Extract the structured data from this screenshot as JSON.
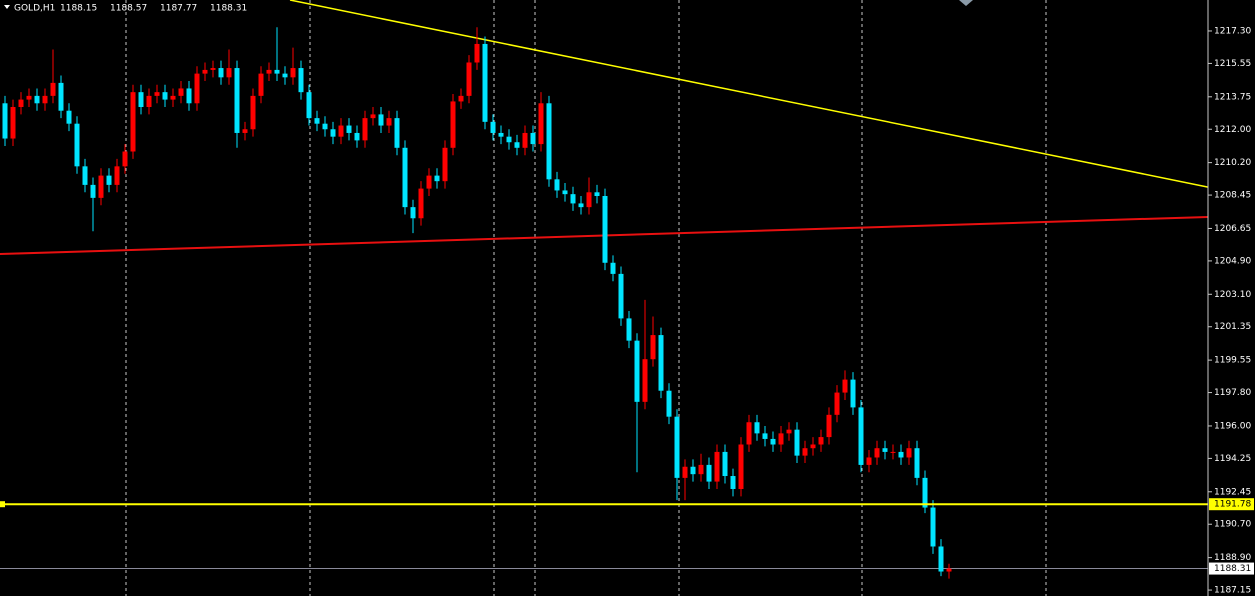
{
  "chart_data": {
    "type": "candlestick",
    "symbol": "GOLD,H1",
    "up_color": "#ff0000",
    "down_color": "#00e5ff",
    "ylim": [
      1186.83,
      1218.97
    ],
    "yticks": [
      {
        "value": 1217.3,
        "label": "1217.30"
      },
      1215.55,
      1213.75,
      {
        "value": 1212,
        "label": "1212.00"
      },
      {
        "value": 1210.2,
        "label": "1210.20"
      },
      1208.45,
      1206.65,
      {
        "value": 1204.9,
        "label": "1204.90"
      },
      {
        "value": 1203.1,
        "label": "1203.10"
      },
      1201.35,
      1199.55,
      {
        "value": 1197.8,
        "label": "1197.80"
      },
      {
        "value": 1196,
        "label": "1196.00"
      },
      1194.25,
      1192.45,
      {
        "value": 1190.7,
        "label": "1190.70"
      },
      {
        "value": 1188.9,
        "label": "1188.90"
      },
      1187.15
    ],
    "open": [
      1213.4,
      1211.5,
      1213.2,
      1213.6,
      1213.8,
      1213.4,
      1213.8,
      1214.5,
      1213.0,
      1212.3,
      1210.0,
      1209.0,
      1208.3,
      1209.5,
      1209.0,
      1210.0,
      1210.8,
      1214.0,
      1213.2,
      1213.8,
      1214.0,
      1213.6,
      1213.8,
      1214.2,
      1213.4,
      1215.0,
      1215.2,
      1215.3,
      1214.8,
      1215.3,
      1211.8,
      1212.0,
      1213.8,
      1215.0,
      1215.2,
      1215.0,
      1214.8,
      1215.3,
      1214.0,
      1212.6,
      1212.3,
      1212.0,
      1211.6,
      1212.2,
      1211.8,
      1211.4,
      1212.6,
      1212.8,
      1212.2,
      1212.6,
      1211.0,
      1207.8,
      1207.2,
      1208.8,
      1209.5,
      1209.2,
      1211.0,
      1213.5,
      1213.8,
      1215.6,
      1216.6,
      1212.4,
      1211.8,
      1211.6,
      1211.3,
      1211.0,
      1211.8,
      1211.2,
      1213.4,
      1209.3,
      1208.7,
      1208.5,
      1208.0,
      1207.8,
      1208.6,
      1208.4,
      1204.8,
      1204.2,
      1201.8,
      1200.6,
      1197.3,
      1199.6,
      1200.9,
      1197.9,
      1196.5,
      1193.2,
      1193.8,
      1193.4,
      1193.9,
      1193.0,
      1194.6,
      1193.3,
      1192.6,
      1195.0,
      1196.2,
      1195.6,
      1195.3,
      1195.0,
      1195.6,
      1195.8,
      1194.4,
      1194.8,
      1195.0,
      1195.4,
      1196.6,
      1197.8,
      1198.5,
      1197.0,
      1193.9,
      1194.3,
      1194.8,
      1194.6,
      1194.6,
      1194.3,
      1194.8,
      1193.2,
      1191.6,
      1189.5,
      1188.15
    ],
    "high": [
      1213.8,
      1213.6,
      1214.0,
      1214.2,
      1214.2,
      1214.2,
      1216.3,
      1214.9,
      1213.4,
      1212.7,
      1210.4,
      1209.4,
      1209.9,
      1209.9,
      1210.4,
      1211.2,
      1214.4,
      1214.4,
      1214.2,
      1214.4,
      1214.4,
      1214.2,
      1214.6,
      1214.6,
      1215.4,
      1215.6,
      1215.7,
      1215.7,
      1216.3,
      1215.7,
      1212.4,
      1214.2,
      1215.4,
      1215.6,
      1217.5,
      1215.4,
      1216.4,
      1215.7,
      1214.4,
      1213.0,
      1212.7,
      1212.4,
      1212.6,
      1212.6,
      1212.2,
      1213.0,
      1213.2,
      1213.2,
      1213.0,
      1213.0,
      1211.4,
      1208.2,
      1209.2,
      1209.9,
      1209.9,
      1211.4,
      1213.9,
      1214.2,
      1216.0,
      1217.5,
      1217.0,
      1212.8,
      1212.2,
      1212.0,
      1211.7,
      1212.2,
      1212.2,
      1214.0,
      1213.8,
      1209.7,
      1209.1,
      1208.9,
      1208.4,
      1209.4,
      1209.0,
      1208.8,
      1205.2,
      1204.6,
      1202.2,
      1201.0,
      1202.8,
      1201.9,
      1201.3,
      1198.3,
      1196.9,
      1194.2,
      1194.2,
      1194.5,
      1194.3,
      1195.0,
      1195.0,
      1193.7,
      1195.4,
      1196.6,
      1196.6,
      1196.0,
      1195.7,
      1196.0,
      1196.2,
      1196.2,
      1195.2,
      1195.4,
      1195.8,
      1197.0,
      1198.2,
      1199.0,
      1198.9,
      1197.4,
      1194.7,
      1195.2,
      1195.2,
      1195.0,
      1195.0,
      1195.2,
      1195.2,
      1193.6,
      1192.0,
      1189.9,
      1188.57
    ],
    "low": [
      1211.1,
      1211.1,
      1212.8,
      1213.2,
      1213.0,
      1213.0,
      1213.4,
      1212.6,
      1211.9,
      1209.6,
      1208.6,
      1206.5,
      1207.9,
      1208.6,
      1208.6,
      1209.6,
      1210.4,
      1212.8,
      1212.8,
      1213.4,
      1213.2,
      1213.2,
      1213.4,
      1213.0,
      1213.0,
      1214.6,
      1214.8,
      1214.4,
      1214.4,
      1211.0,
      1211.4,
      1211.6,
      1213.4,
      1214.6,
      1214.6,
      1214.4,
      1214.4,
      1213.6,
      1212.2,
      1211.9,
      1211.6,
      1211.2,
      1211.2,
      1211.4,
      1211.0,
      1211.0,
      1212.2,
      1211.8,
      1211.8,
      1210.6,
      1207.4,
      1206.4,
      1206.8,
      1208.4,
      1208.8,
      1208.8,
      1210.6,
      1213.1,
      1213.4,
      1215.2,
      1212.0,
      1211.4,
      1211.2,
      1210.9,
      1210.6,
      1210.6,
      1210.8,
      1210.8,
      1208.9,
      1208.3,
      1208.1,
      1207.6,
      1207.4,
      1207.4,
      1208.0,
      1204.4,
      1203.8,
      1201.4,
      1200.2,
      1193.5,
      1196.9,
      1199.2,
      1197.5,
      1196.1,
      1192.0,
      1192.0,
      1193.0,
      1193.0,
      1192.6,
      1192.6,
      1192.9,
      1192.2,
      1192.2,
      1194.6,
      1195.2,
      1194.9,
      1194.6,
      1194.6,
      1195.2,
      1194.0,
      1194.0,
      1194.4,
      1194.6,
      1195.0,
      1196.2,
      1197.4,
      1196.6,
      1193.5,
      1193.5,
      1193.9,
      1194.2,
      1194.2,
      1193.9,
      1193.9,
      1192.8,
      1191.3,
      1189.1,
      1187.9,
      1187.77
    ],
    "close": [
      1211.5,
      1213.2,
      1213.6,
      1213.8,
      1213.4,
      1213.8,
      1214.5,
      1213.0,
      1212.3,
      1210.0,
      1209.0,
      1208.3,
      1209.5,
      1209.0,
      1210.0,
      1210.8,
      1214.0,
      1213.2,
      1213.8,
      1214.0,
      1213.6,
      1213.8,
      1214.2,
      1213.4,
      1215.0,
      1215.2,
      1215.3,
      1214.8,
      1215.3,
      1211.8,
      1212.0,
      1213.8,
      1215.0,
      1215.2,
      1215.0,
      1214.8,
      1215.3,
      1214.0,
      1212.6,
      1212.3,
      1212.0,
      1211.6,
      1212.2,
      1211.8,
      1211.4,
      1212.6,
      1212.8,
      1212.2,
      1212.6,
      1211.0,
      1207.8,
      1207.2,
      1208.8,
      1209.5,
      1209.2,
      1211.0,
      1213.5,
      1213.8,
      1215.6,
      1216.6,
      1212.4,
      1211.8,
      1211.6,
      1211.3,
      1211.0,
      1211.8,
      1211.2,
      1213.4,
      1209.3,
      1208.7,
      1208.5,
      1208.0,
      1207.8,
      1208.6,
      1208.4,
      1204.8,
      1204.2,
      1201.8,
      1200.6,
      1197.3,
      1199.6,
      1200.9,
      1197.9,
      1196.5,
      1193.2,
      1193.8,
      1193.4,
      1193.9,
      1193.0,
      1194.6,
      1193.3,
      1192.6,
      1195.0,
      1196.2,
      1195.6,
      1195.3,
      1195.0,
      1195.6,
      1195.8,
      1194.4,
      1194.8,
      1195.0,
      1195.4,
      1196.6,
      1197.8,
      1198.5,
      1197.0,
      1193.9,
      1194.3,
      1194.8,
      1194.6,
      1194.6,
      1194.3,
      1194.8,
      1193.2,
      1191.6,
      1189.5,
      1188.15,
      1188.31
    ],
    "horizontal_line": {
      "value": 1191.78,
      "color": "#ffff00"
    },
    "trendlines": [
      {
        "color": "#ffff00",
        "values": [
          1218.97,
          1208.88
        ]
      },
      {
        "color": "#e81010",
        "values": [
          1205.27,
          1207.27
        ]
      }
    ]
  }
}
